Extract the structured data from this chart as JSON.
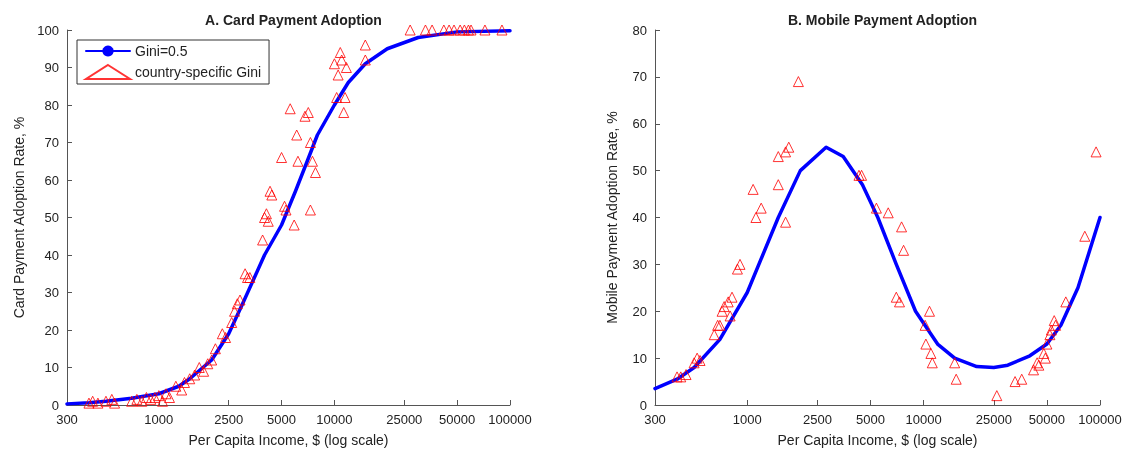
{
  "chart_data": [
    {
      "type": "scatter",
      "title": "A. Card Payment Adoption",
      "xlabel": "Per Capita Income, $ (log scale)",
      "ylabel": "Card Payment Adoption Rate, %",
      "log": "x",
      "xlim": [
        300,
        100000
      ],
      "xticks": [
        300,
        1000,
        2500,
        5000,
        10000,
        25000,
        50000,
        100000
      ],
      "ylim": [
        0,
        100
      ],
      "yticks": [
        0,
        10,
        20,
        30,
        40,
        50,
        60,
        70,
        80,
        90,
        100
      ],
      "grid": false,
      "legend": "top left",
      "series": [
        {
          "name": "Gini=0.5",
          "type": "line",
          "color": "#0000ff",
          "marker": "none",
          "line_style": "solid",
          "x": [
            300,
            400,
            500,
            700,
            1000,
            1300,
            1500,
            2000,
            2500,
            3000,
            4000,
            5000,
            6000,
            7000,
            8000,
            10000,
            12000,
            15000,
            20000,
            30000,
            50000,
            100000
          ],
          "values": [
            0.3,
            0.6,
            1,
            1.8,
            3,
            5,
            7,
            12,
            19,
            27,
            40,
            48,
            57,
            65,
            72,
            80,
            86,
            91,
            95,
            98,
            99.5,
            99.8
          ]
        },
        {
          "name": "country-specific Gini",
          "color": "#ff0000",
          "marker": "triangle",
          "x": [
            400,
            420,
            450,
            500,
            540,
            560,
            700,
            750,
            800,
            850,
            900,
            950,
            1000,
            1050,
            1100,
            1150,
            1250,
            1350,
            1400,
            1500,
            1600,
            1700,
            1800,
            1900,
            2000,
            2100,
            2300,
            2400,
            2600,
            2700,
            2800,
            2900,
            3100,
            3200,
            3300,
            3900,
            4000,
            4100,
            4200,
            4300,
            4400,
            5000,
            5200,
            5300,
            5600,
            5900,
            6100,
            6200,
            6800,
            7100,
            7300,
            7500,
            7300,
            7800,
            10000,
            10300,
            10500,
            10800,
            11000,
            11500,
            11300,
            11700,
            15000,
            15000,
            27000,
            33000,
            36000,
            42000,
            45000,
            48000,
            52000,
            55000,
            58000,
            60000,
            72000,
            90000
          ],
          "values": [
            0.5,
            1,
            0.5,
            1,
            1.5,
            0.5,
            1,
            1.5,
            1,
            2,
            1.5,
            2,
            2.5,
            1,
            3,
            2,
            5,
            4,
            6,
            7,
            8,
            10,
            9,
            11,
            12,
            15,
            19,
            18,
            22,
            25,
            27,
            28,
            35,
            34,
            34,
            44,
            50,
            51,
            49,
            57,
            56,
            66,
            53,
            52,
            79,
            48,
            72,
            65,
            77,
            78,
            70,
            65,
            52,
            62,
            91,
            82,
            88,
            94,
            92,
            82,
            78,
            90,
            96,
            92,
            100,
            100,
            100,
            100,
            100,
            100,
            100,
            100,
            100,
            100,
            100,
            100
          ]
        }
      ]
    },
    {
      "type": "scatter",
      "title": "B. Mobile Payment Adoption",
      "xlabel": "Per Capita Income, $ (log scale)",
      "ylabel": "Mobile Payment Adoption Rate, %",
      "log": "x",
      "xlim": [
        300,
        100000
      ],
      "xticks": [
        300,
        1000,
        2500,
        5000,
        10000,
        25000,
        50000,
        100000
      ],
      "ylim": [
        0,
        80
      ],
      "yticks": [
        0,
        10,
        20,
        30,
        40,
        50,
        60,
        70,
        80
      ],
      "grid": false,
      "legend": false,
      "series": [
        {
          "type": "line",
          "color": "#0000ff",
          "marker": "none",
          "line_style": "solid",
          "x": [
            300,
            400,
            500,
            700,
            1000,
            1500,
            2000,
            2800,
            3500,
            4500,
            5500,
            7000,
            9000,
            12000,
            15000,
            20000,
            25000,
            30000,
            40000,
            50000,
            60000,
            75000,
            100000
          ],
          "values": [
            3.5,
            5.5,
            8,
            14,
            24,
            40,
            50,
            55,
            53,
            47,
            40,
            30,
            20,
            13,
            10,
            8.2,
            8,
            8.5,
            10.5,
            13,
            17,
            25,
            40
          ]
        },
        {
          "color": "#ff0000",
          "marker": "triangle",
          "x": [
            400,
            420,
            450,
            500,
            520,
            540,
            650,
            680,
            700,
            720,
            740,
            780,
            800,
            820,
            880,
            910,
            1080,
            1120,
            1200,
            1500,
            1500,
            1650,
            1720,
            1650,
            1950,
            4300,
            4450,
            5400,
            6300,
            7500,
            7700,
            7000,
            7300,
            10200,
            10300,
            10800,
            11000,
            11200,
            15000,
            15300,
            26000,
            33000,
            36000,
            42000,
            44000,
            45000,
            48000,
            49000,
            50000,
            52000,
            53000,
            55000,
            56000,
            64000,
            82000,
            95000
          ],
          "values": [
            6,
            6,
            6.5,
            9,
            10,
            9.5,
            15,
            17,
            17,
            20,
            21,
            22,
            19,
            23,
            29,
            30,
            46,
            40,
            42,
            53,
            47,
            54,
            55,
            39,
            69,
            49,
            49,
            42,
            41,
            38,
            33,
            23,
            22,
            17,
            13,
            20,
            11,
            9,
            9,
            5.5,
            2,
            5,
            5.5,
            7.5,
            9,
            8.5,
            11,
            10,
            13,
            15,
            16,
            18,
            17,
            22,
            36,
            54
          ]
        }
      ]
    }
  ]
}
